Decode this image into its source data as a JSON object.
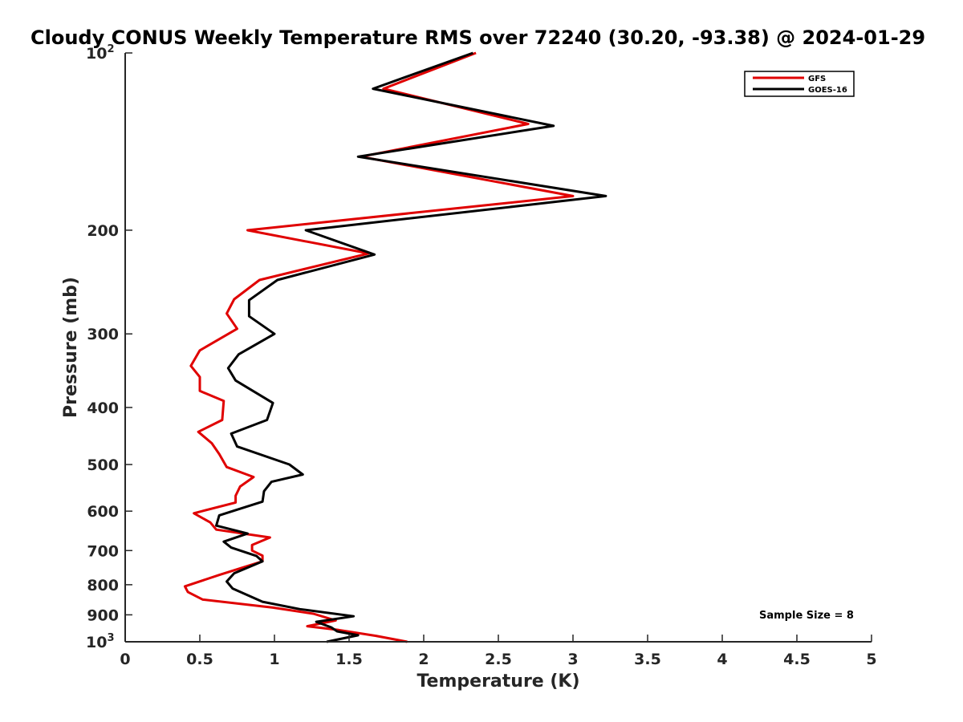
{
  "chart_data": {
    "type": "line",
    "title": "Cloudy CONUS Weekly Temperature RMS over 72240 (30.20, -93.38) @ 2024-01-29",
    "xlabel": "Temperature (K)",
    "ylabel": "Pressure (mb)",
    "xlim": [
      0,
      5
    ],
    "ylim": [
      100,
      1000
    ],
    "y_scale": "log",
    "y_reversed": true,
    "grid": false,
    "legend_position": "top-right",
    "x_ticks": [
      "0",
      "0.5",
      "1",
      "1.5",
      "2",
      "2.5",
      "3",
      "3.5",
      "4",
      "4.5",
      "5"
    ],
    "y_ticks": [
      {
        "value": 100,
        "label": "10",
        "sup": "2"
      },
      {
        "value": 200,
        "label": "200",
        "sup": ""
      },
      {
        "value": 300,
        "label": "300",
        "sup": ""
      },
      {
        "value": 400,
        "label": "400",
        "sup": ""
      },
      {
        "value": 500,
        "label": "500",
        "sup": ""
      },
      {
        "value": 600,
        "label": "600",
        "sup": ""
      },
      {
        "value": 700,
        "label": "700",
        "sup": ""
      },
      {
        "value": 800,
        "label": "800",
        "sup": ""
      },
      {
        "value": 900,
        "label": "900",
        "sup": ""
      },
      {
        "value": 1000,
        "label": "10",
        "sup": "3"
      }
    ],
    "annotation": "Sample Size = 8",
    "series": [
      {
        "name": "GFS",
        "color": "#e00000",
        "points": [
          [
            2.35,
            100
          ],
          [
            1.73,
            115
          ],
          [
            2.7,
            132
          ],
          [
            1.58,
            150
          ],
          [
            3.0,
            175
          ],
          [
            0.82,
            200
          ],
          [
            1.63,
            219
          ],
          [
            0.9,
            243
          ],
          [
            0.73,
            262
          ],
          [
            0.68,
            277
          ],
          [
            0.75,
            294
          ],
          [
            0.5,
            320
          ],
          [
            0.44,
            340
          ],
          [
            0.5,
            355
          ],
          [
            0.5,
            375
          ],
          [
            0.66,
            390
          ],
          [
            0.65,
            420
          ],
          [
            0.49,
            440
          ],
          [
            0.58,
            460
          ],
          [
            0.63,
            480
          ],
          [
            0.68,
            505
          ],
          [
            0.86,
            525
          ],
          [
            0.77,
            545
          ],
          [
            0.74,
            565
          ],
          [
            0.74,
            580
          ],
          [
            0.46,
            605
          ],
          [
            0.57,
            627
          ],
          [
            0.61,
            645
          ],
          [
            0.97,
            665
          ],
          [
            0.85,
            685
          ],
          [
            0.85,
            700
          ],
          [
            0.92,
            714
          ],
          [
            0.92,
            730
          ],
          [
            0.63,
            770
          ],
          [
            0.4,
            805
          ],
          [
            0.42,
            823
          ],
          [
            0.52,
            848
          ],
          [
            0.99,
            875
          ],
          [
            1.26,
            896
          ],
          [
            1.41,
            920
          ],
          [
            1.22,
            941
          ],
          [
            1.43,
            955
          ],
          [
            1.68,
            977
          ],
          [
            1.89,
            1000
          ]
        ]
      },
      {
        "name": "GOES-16",
        "color": "#000000",
        "points": [
          [
            2.33,
            100
          ],
          [
            1.66,
            115
          ],
          [
            2.87,
            133
          ],
          [
            1.56,
            150
          ],
          [
            3.22,
            175
          ],
          [
            1.21,
            200
          ],
          [
            1.67,
            220
          ],
          [
            1.02,
            243
          ],
          [
            0.83,
            263
          ],
          [
            0.83,
            280
          ],
          [
            1.0,
            300
          ],
          [
            0.76,
            325
          ],
          [
            0.69,
            343
          ],
          [
            0.74,
            360
          ],
          [
            0.99,
            393
          ],
          [
            0.95,
            420
          ],
          [
            0.71,
            443
          ],
          [
            0.75,
            466
          ],
          [
            1.1,
            500
          ],
          [
            1.19,
            520
          ],
          [
            0.98,
            535
          ],
          [
            0.93,
            555
          ],
          [
            0.92,
            578
          ],
          [
            0.63,
            610
          ],
          [
            0.61,
            635
          ],
          [
            0.82,
            655
          ],
          [
            0.66,
            676
          ],
          [
            0.71,
            692
          ],
          [
            0.88,
            715
          ],
          [
            0.92,
            730
          ],
          [
            0.73,
            765
          ],
          [
            0.68,
            790
          ],
          [
            0.72,
            812
          ],
          [
            0.92,
            855
          ],
          [
            1.17,
            880
          ],
          [
            1.53,
            905
          ],
          [
            1.28,
            925
          ],
          [
            1.38,
            945
          ],
          [
            1.42,
            960
          ],
          [
            1.56,
            975
          ],
          [
            1.35,
            1000
          ]
        ]
      }
    ]
  }
}
